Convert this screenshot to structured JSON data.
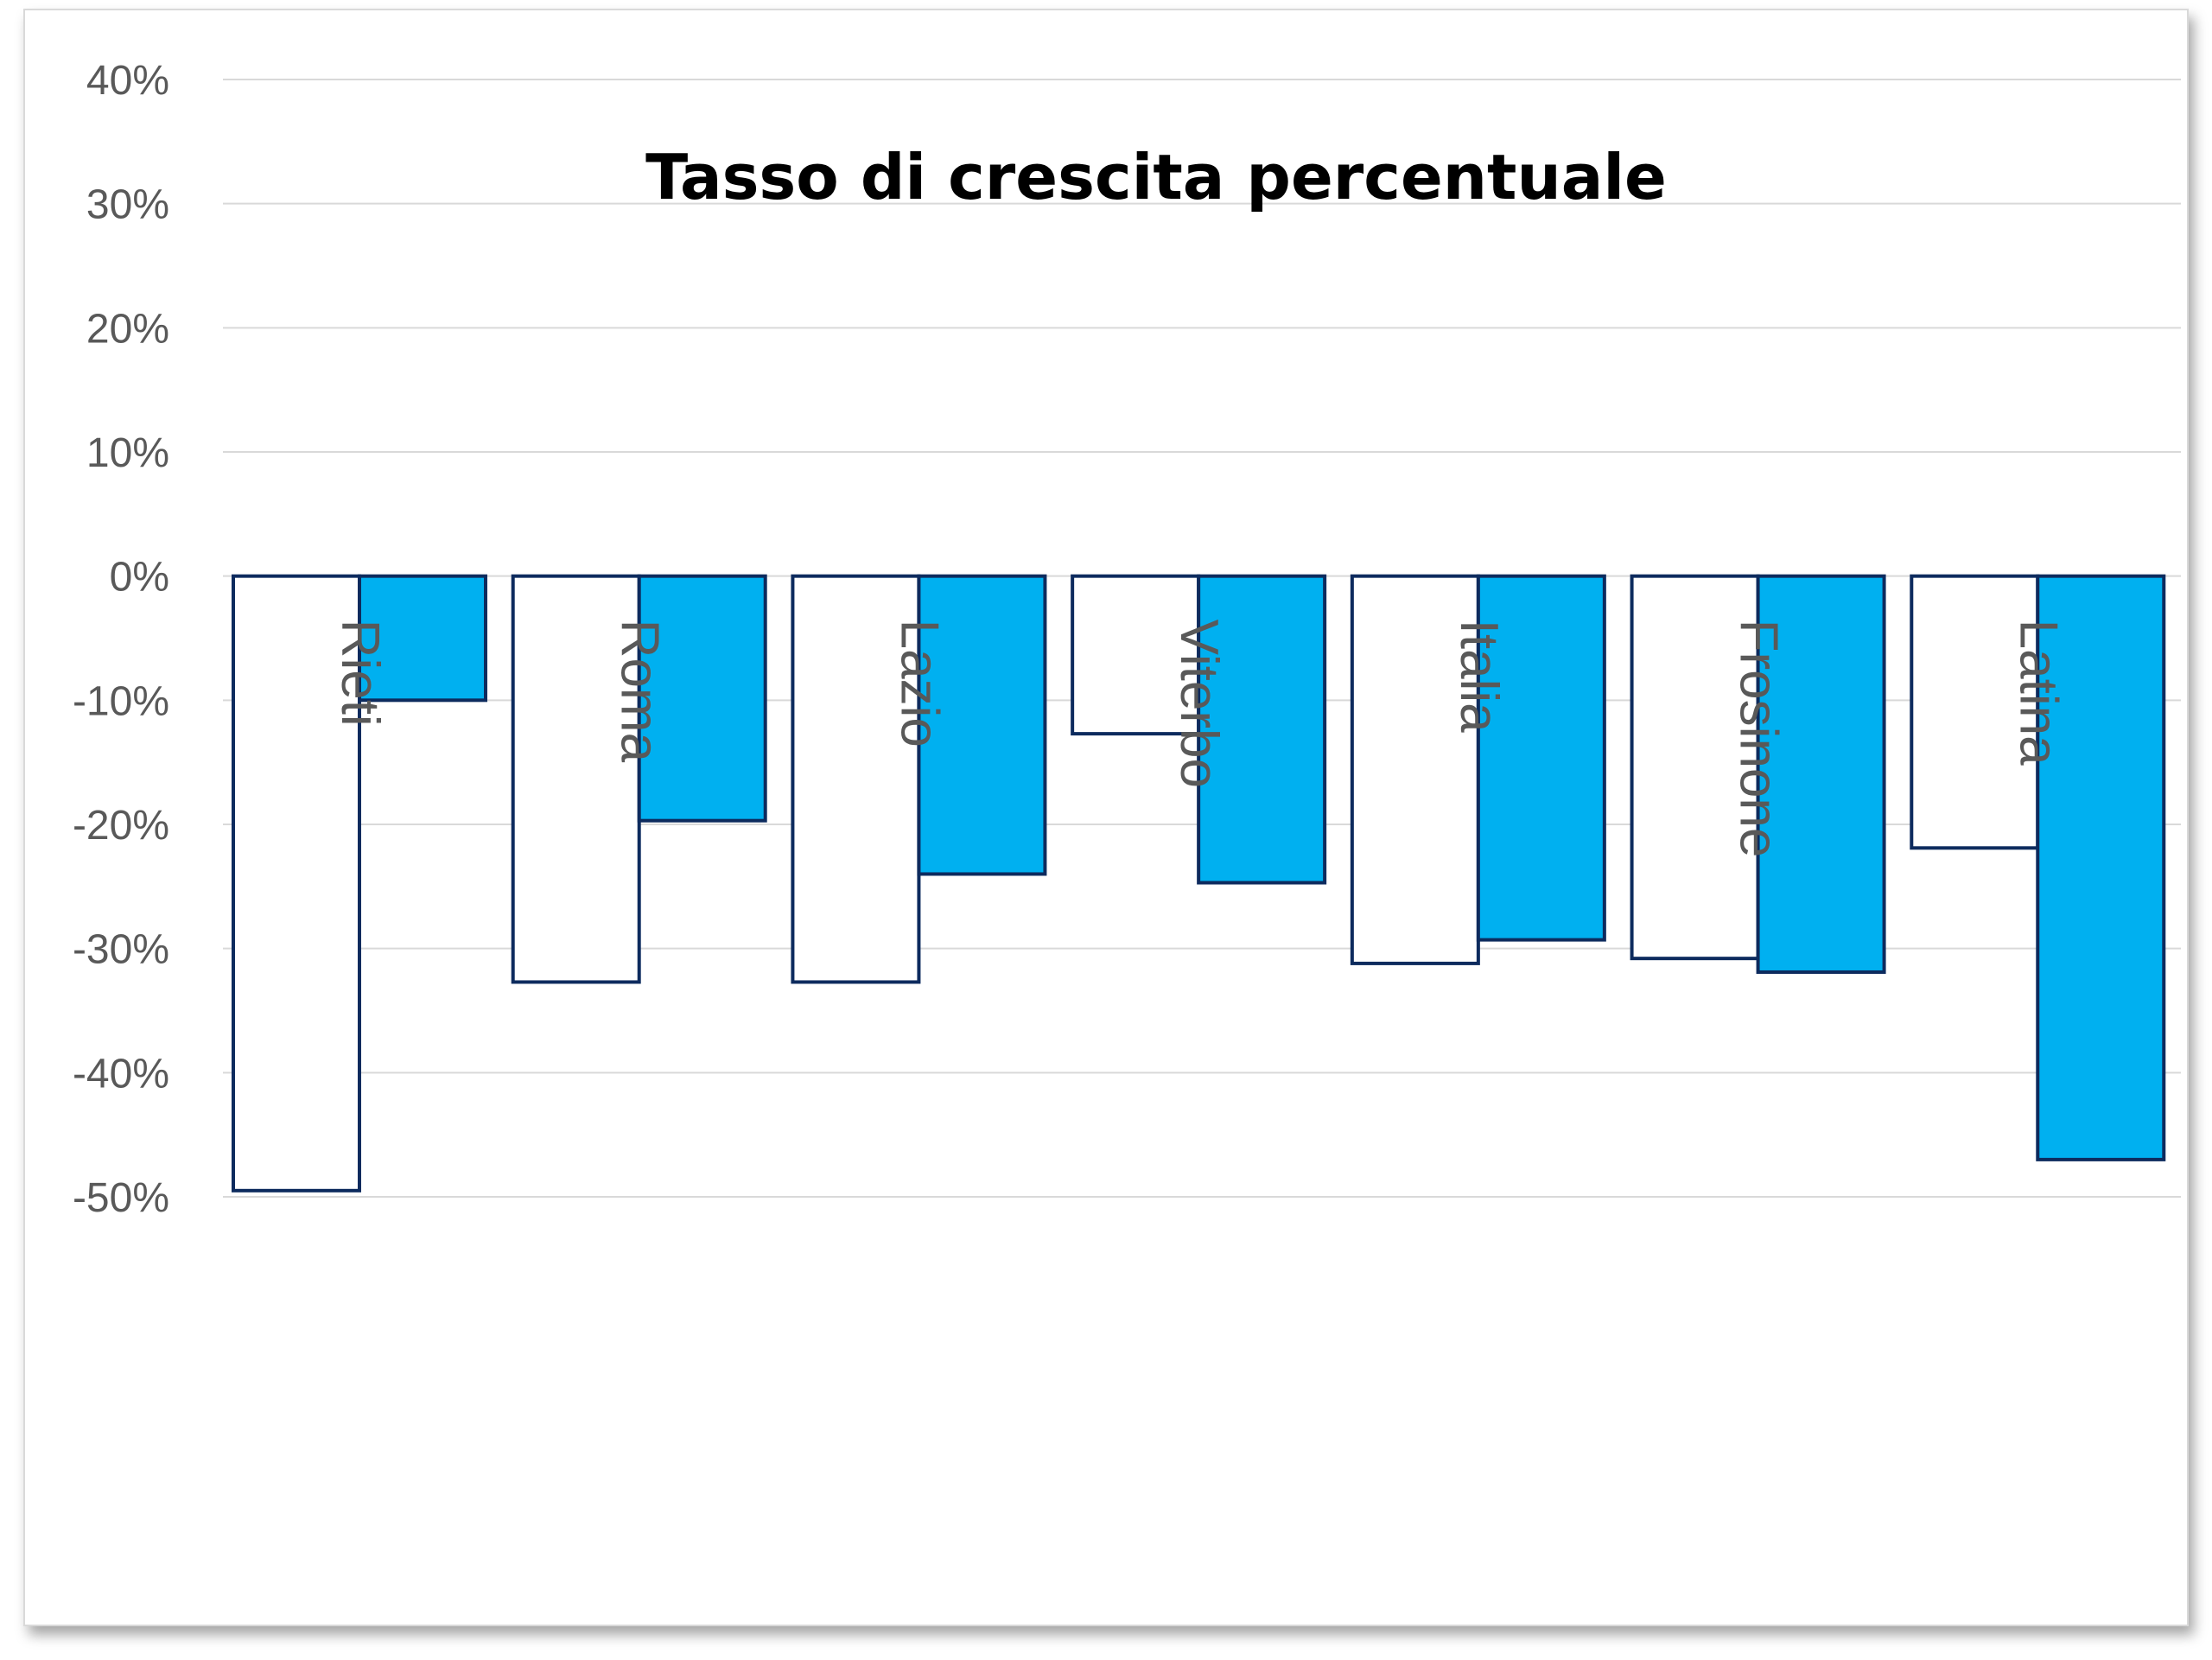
{
  "chart_data": {
    "type": "bar",
    "title": "Tasso di crescita percentuale",
    "xlabel": "",
    "ylabel": "",
    "categories": [
      "Rieti",
      "Roma",
      "Lazio",
      "Viterbo",
      "Italia",
      "Frosinone",
      "Latina"
    ],
    "series": [
      {
        "values": [
          -49.5,
          -32.7,
          -32.7,
          -12.7,
          -31.2,
          -30.8,
          -21.9
        ],
        "fill": "#ffffff",
        "stroke": "#0d2b5e"
      },
      {
        "values": [
          -10.0,
          -19.7,
          -24.0,
          -24.7,
          -29.3,
          -31.9,
          -47.0
        ],
        "fill": "#00b0f0",
        "stroke": "#0d2b5e"
      }
    ],
    "ylim": [
      -50,
      40
    ],
    "yticks": [
      "40%",
      "30%",
      "20%",
      "10%",
      "0%",
      "-10%",
      "-20%",
      "-30%",
      "-40%",
      "-50%"
    ],
    "ytick_values": [
      40,
      30,
      20,
      10,
      0,
      -10,
      -20,
      -30,
      -40,
      -50
    ],
    "grid": true,
    "legend": "none",
    "gridline_color": "#d9d9d9"
  }
}
